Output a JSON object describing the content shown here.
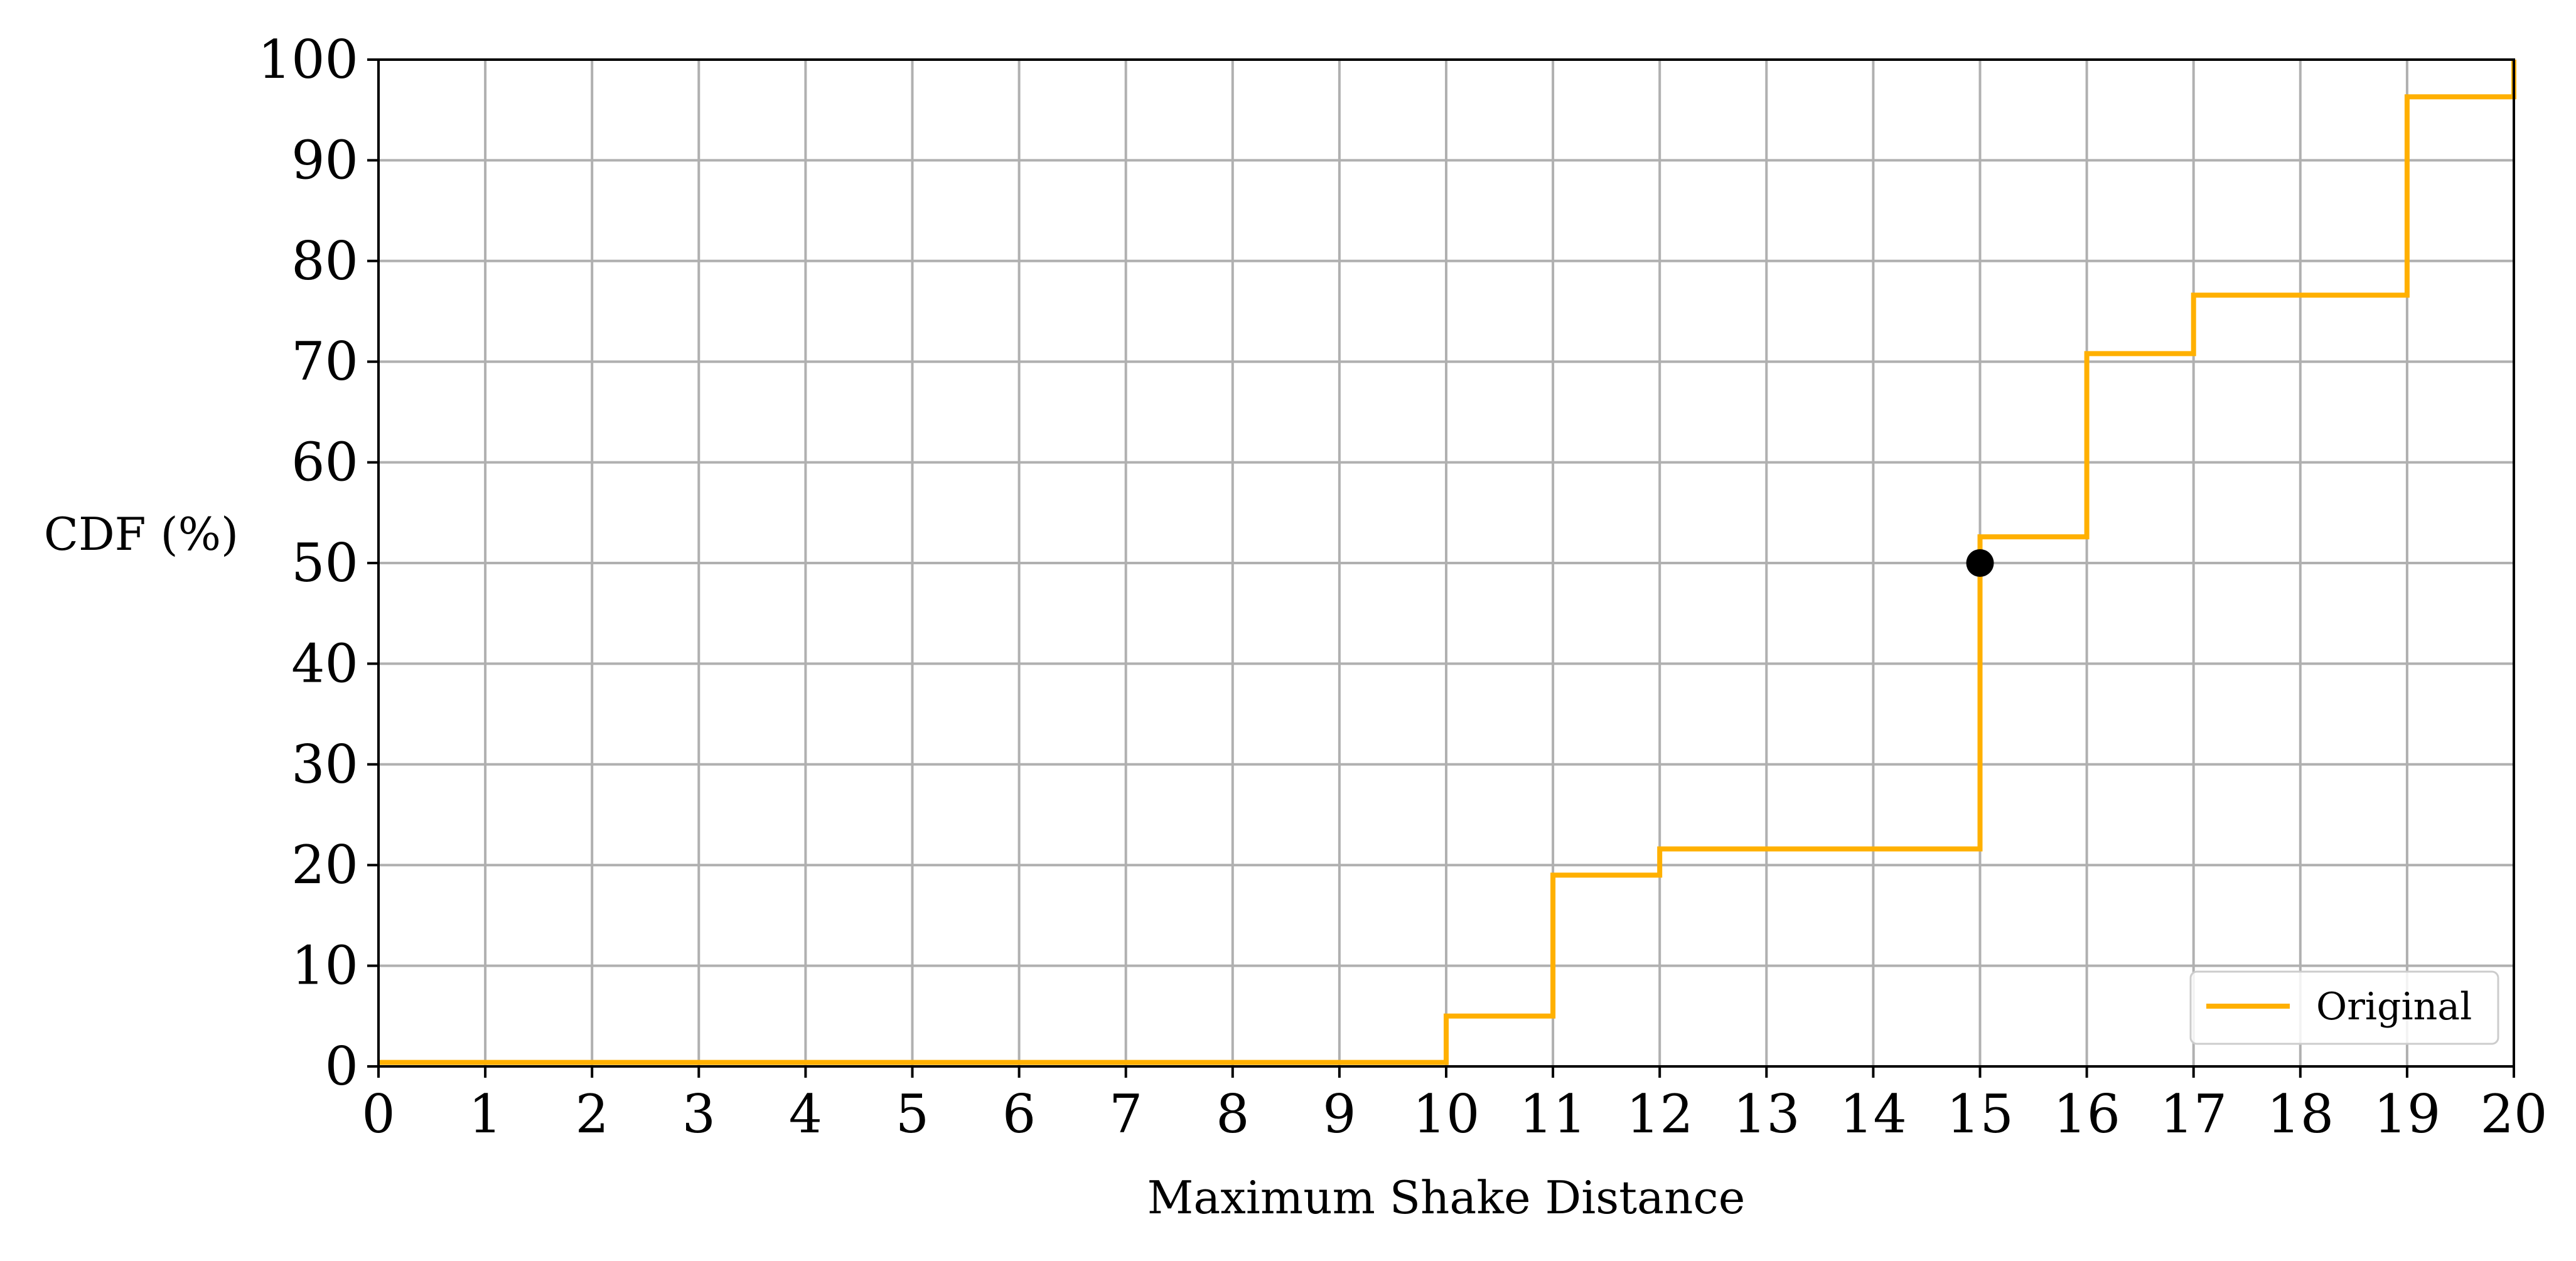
{
  "chart_data": {
    "type": "line",
    "xlabel": "Maximum Shake Distance",
    "ylabel": "CDF (%)",
    "xlim": [
      0,
      20
    ],
    "ylim": [
      0,
      100
    ],
    "xticks": [
      0,
      1,
      2,
      3,
      4,
      5,
      6,
      7,
      8,
      9,
      10,
      11,
      12,
      13,
      14,
      15,
      16,
      17,
      18,
      19,
      20
    ],
    "yticks": [
      0,
      10,
      20,
      30,
      40,
      50,
      60,
      70,
      80,
      90,
      100
    ],
    "grid": true,
    "legend_position": "bottom-right",
    "series": [
      {
        "name": "Original",
        "style": "step",
        "color": "#FFB000",
        "x": [
          0,
          10,
          10,
          11,
          11,
          12,
          12,
          15,
          15,
          16,
          16,
          17,
          17,
          19,
          19,
          20,
          20
        ],
        "y": [
          0.4,
          0.4,
          5.0,
          5.0,
          19.0,
          19.0,
          21.6,
          21.6,
          52.6,
          52.6,
          70.8,
          70.8,
          76.6,
          76.6,
          96.3,
          96.3,
          100
        ]
      }
    ],
    "markers": [
      {
        "x": 15,
        "y": 50,
        "color": "#000000"
      }
    ]
  }
}
